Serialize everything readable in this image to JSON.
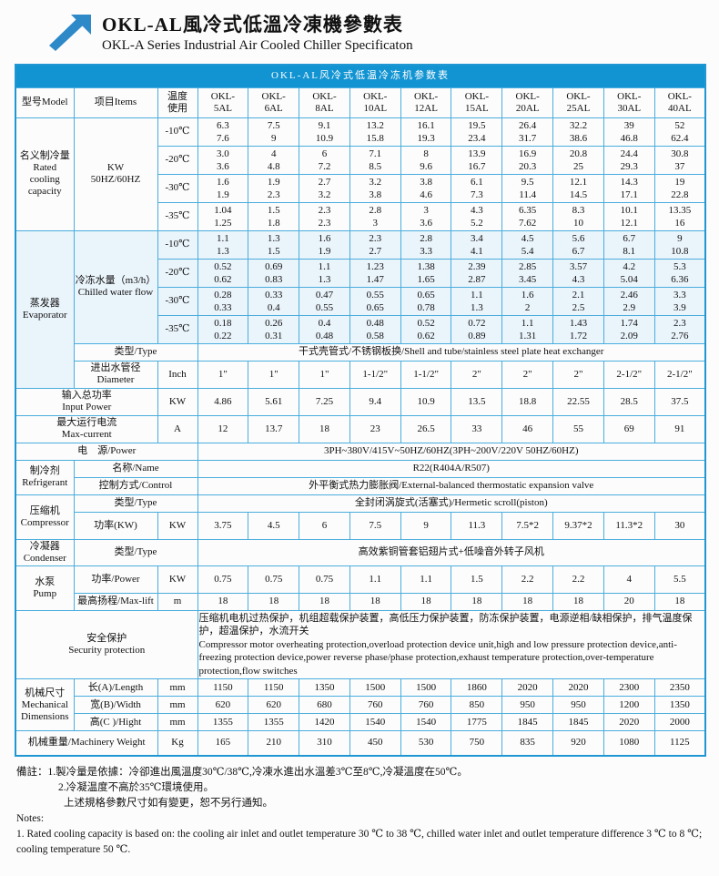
{
  "colors": {
    "accent": "#1294d2",
    "grid": "#4aadde"
  },
  "header": {
    "title_zh": "OKL-AL風冷式低溫冷凍機參數表",
    "title_en": "OKL-A Series Industrial Air Cooled Chiller Specificaton"
  },
  "table": {
    "title": "OKL-AL风冷式低温冷冻机参数表",
    "col_model": "型号Model",
    "col_items": "项目Items",
    "col_temp": "温度\n使用",
    "models": [
      "OKL-5AL",
      "OKL-6AL",
      "OKL-8AL",
      "OKL-10AL",
      "OKL-12AL",
      "OKL-15AL",
      "OKL-20AL",
      "OKL-25AL",
      "OKL-30AL",
      "OKL-40AL"
    ],
    "cooling": {
      "label": "名义制冷量\nRated\ncooling\ncapacity",
      "unit": "KW\n50HZ/60HZ",
      "rows": [
        {
          "temp": "-10℃",
          "hz50": [
            "6.3",
            "7.5",
            "9.1",
            "13.2",
            "16.1",
            "19.5",
            "26.4",
            "32.2",
            "39",
            "52"
          ],
          "hz60": [
            "7.6",
            "9",
            "10.9",
            "15.8",
            "19.3",
            "23.4",
            "31.7",
            "38.6",
            "46.8",
            "62.4"
          ]
        },
        {
          "temp": "-20℃",
          "hz50": [
            "3.0",
            "4",
            "6",
            "7.1",
            "8",
            "13.9",
            "16.9",
            "20.8",
            "24.4",
            "30.8"
          ],
          "hz60": [
            "3.6",
            "4.8",
            "7.2",
            "8.5",
            "9.6",
            "16.7",
            "20.3",
            "25",
            "29.3",
            "37"
          ]
        },
        {
          "temp": "-30℃",
          "hz50": [
            "1.6",
            "1.9",
            "2.7",
            "3.2",
            "3.8",
            "6.1",
            "9.5",
            "12.1",
            "14.3",
            "19"
          ],
          "hz60": [
            "1.9",
            "2.3",
            "3.2",
            "3.8",
            "4.6",
            "7.3",
            "11.4",
            "14.5",
            "17.1",
            "22.8"
          ]
        },
        {
          "temp": "-35℃",
          "hz50": [
            "1.04",
            "1.5",
            "2.3",
            "2.8",
            "3",
            "4.3",
            "6.35",
            "8.3",
            "10.1",
            "13.35"
          ],
          "hz60": [
            "1.25",
            "1.8",
            "2.3",
            "3",
            "3.6",
            "5.2",
            "7.62",
            "10",
            "12.1",
            "16"
          ]
        }
      ]
    },
    "evaporator": {
      "label": "蒸发器\nEvaporator",
      "flow_label": "冷冻水量（m3/h）\nChilled water flow",
      "rows": [
        {
          "temp": "-10℃",
          "hz50": [
            "1.1",
            "1.3",
            "1.6",
            "2.3",
            "2.8",
            "3.4",
            "4.5",
            "5.6",
            "6.7",
            "9"
          ],
          "hz60": [
            "1.3",
            "1.5",
            "1.9",
            "2.7",
            "3.3",
            "4.1",
            "5.4",
            "6.7",
            "8.1",
            "10.8"
          ]
        },
        {
          "temp": "-20℃",
          "hz50": [
            "0.52",
            "0.69",
            "1.1",
            "1.23",
            "1.38",
            "2.39",
            "2.85",
            "3.57",
            "4.2",
            "5.3"
          ],
          "hz60": [
            "0.62",
            "0.83",
            "1.3",
            "1.47",
            "1.65",
            "2.87",
            "3.45",
            "4.3",
            "5.04",
            "6.36"
          ]
        },
        {
          "temp": "-30℃",
          "hz50": [
            "0.28",
            "0.33",
            "0.47",
            "0.55",
            "0.65",
            "1.1",
            "1.6",
            "2.1",
            "2.46",
            "3.3"
          ],
          "hz60": [
            "0.33",
            "0.4",
            "0.55",
            "0.65",
            "0.78",
            "1.3",
            "2",
            "2.5",
            "2.9",
            "3.9"
          ]
        },
        {
          "temp": "-35℃",
          "hz50": [
            "0.18",
            "0.26",
            "0.4",
            "0.48",
            "0.52",
            "0.72",
            "1.1",
            "1.43",
            "1.74",
            "2.3"
          ],
          "hz60": [
            "0.22",
            "0.31",
            "0.48",
            "0.58",
            "0.62",
            "0.89",
            "1.31",
            "1.72",
            "2.09",
            "2.76"
          ]
        }
      ],
      "type_label": "类型/Type",
      "type_value": "干式壳管式/不锈钢板换/Shell and tube/stainless steel plate heat exchanger",
      "pipe_label": "进出水管径\nDiameter",
      "pipe_unit": "Inch",
      "pipe_values": [
        "1\"",
        "1\"",
        "1\"",
        "1-1/2\"",
        "1-1/2\"",
        "2\"",
        "2\"",
        "2\"",
        "2-1/2\"",
        "2-1/2\""
      ]
    },
    "input_power": {
      "label": "输入总功率\nInput Power",
      "unit": "KW",
      "values": [
        "4.86",
        "5.61",
        "7.25",
        "9.4",
        "10.9",
        "13.5",
        "18.8",
        "22.55",
        "28.5",
        "37.5"
      ]
    },
    "max_current": {
      "label": "最大运行电流\nMax-current",
      "unit": "A",
      "values": [
        "12",
        "13.7",
        "18",
        "23",
        "26.5",
        "33",
        "46",
        "55",
        "69",
        "91"
      ]
    },
    "power_supply": {
      "label": "电　源/Power",
      "value": "3PH~380V/415V~50HZ/60HZ(3PH~200V/220V  50HZ/60HZ)"
    },
    "refrigerant": {
      "label": "制冷剂\nRefrigerant",
      "name_label": "名称/Name",
      "name_value": "R22(R404A/R507)",
      "control_label": "控制方式/Control",
      "control_value": "外平衡式热力膨胀阀/External-balanced thermostatic expansion valve"
    },
    "compressor": {
      "label": "压缩机\nCompressor",
      "type_label": "类型/Type",
      "type_value": "全封闭涡旋式(活塞式)/Hermetic scroll(piston)",
      "power_label": "功率(KW)",
      "power_unit": "KW",
      "power_values": [
        "3.75",
        "4.5",
        "6",
        "7.5",
        "9",
        "11.3",
        "7.5*2",
        "9.37*2",
        "11.3*2",
        "30"
      ]
    },
    "condenser": {
      "label": "冷凝器\nCondenser",
      "type_label": "类型/Type",
      "type_value": "高效紫铜管套铝翅片式+低噪音外转子风机"
    },
    "pump": {
      "label": "水泵\nPump",
      "power_label": "功率/Power",
      "power_unit": "KW",
      "power_values": [
        "0.75",
        "0.75",
        "0.75",
        "1.1",
        "1.1",
        "1.5",
        "2.2",
        "2.2",
        "4",
        "5.5"
      ],
      "lift_label": "最高扬程/Max-lift",
      "lift_unit": "m",
      "lift_values": [
        "18",
        "18",
        "18",
        "18",
        "18",
        "18",
        "18",
        "18",
        "20",
        "18"
      ]
    },
    "security": {
      "label": "安全保护\nSecurity protection",
      "text_zh": "压缩机电机过热保护，机组超载保护装置，高低压力保护装置，防冻保护装置，电源逆相/缺相保护，排气温度保护，超温保护，水流开关",
      "text_en": "Compressor motor overheating protection,overload protection device unit,high and low pressure protection device,anti-freezing protection device,power reverse phase/phase protection,exhaust temperature protection,over-temperature protection,flow switches"
    },
    "dimensions": {
      "label": "机械尺寸\nMechanical\nDimensions",
      "rows": [
        {
          "label": "长(A)/Length",
          "unit": "mm",
          "values": [
            "1150",
            "1150",
            "1350",
            "1500",
            "1500",
            "1860",
            "2020",
            "2020",
            "2300",
            "2350"
          ]
        },
        {
          "label": "宽(B)/Width",
          "unit": "mm",
          "values": [
            "620",
            "620",
            "680",
            "760",
            "760",
            "850",
            "950",
            "950",
            "1200",
            "1350"
          ]
        },
        {
          "label": "高(C )/Hight",
          "unit": "mm",
          "values": [
            "1355",
            "1355",
            "1420",
            "1540",
            "1540",
            "1775",
            "1845",
            "1845",
            "2020",
            "2000"
          ]
        }
      ]
    },
    "weight": {
      "label": "机械重量/Machinery Weight",
      "unit": "Kg",
      "values": [
        "165",
        "210",
        "310",
        "450",
        "530",
        "750",
        "835",
        "920",
        "1080",
        "1125"
      ]
    }
  },
  "notes": {
    "zh1": "備註：1.製冷量是依據：冷卻進出風溫度30℃/38℃,冷凍水進出水溫差3℃至8℃,冷凝溫度在50℃。",
    "zh2": "2.冷凝温度不高於35℃環境使用。",
    "zh3": "上述規格參數尺寸如有變更，恕不另行通知。",
    "en_head": "Notes:",
    "en1": "1. Rated cooling capacity is based on: the cooling air inlet and outlet temperature 30 ℃ to 38 ℃, chilled water inlet and outlet temperature difference 3 ℃ to 8 ℃; cooling temperature 50 ℃."
  }
}
